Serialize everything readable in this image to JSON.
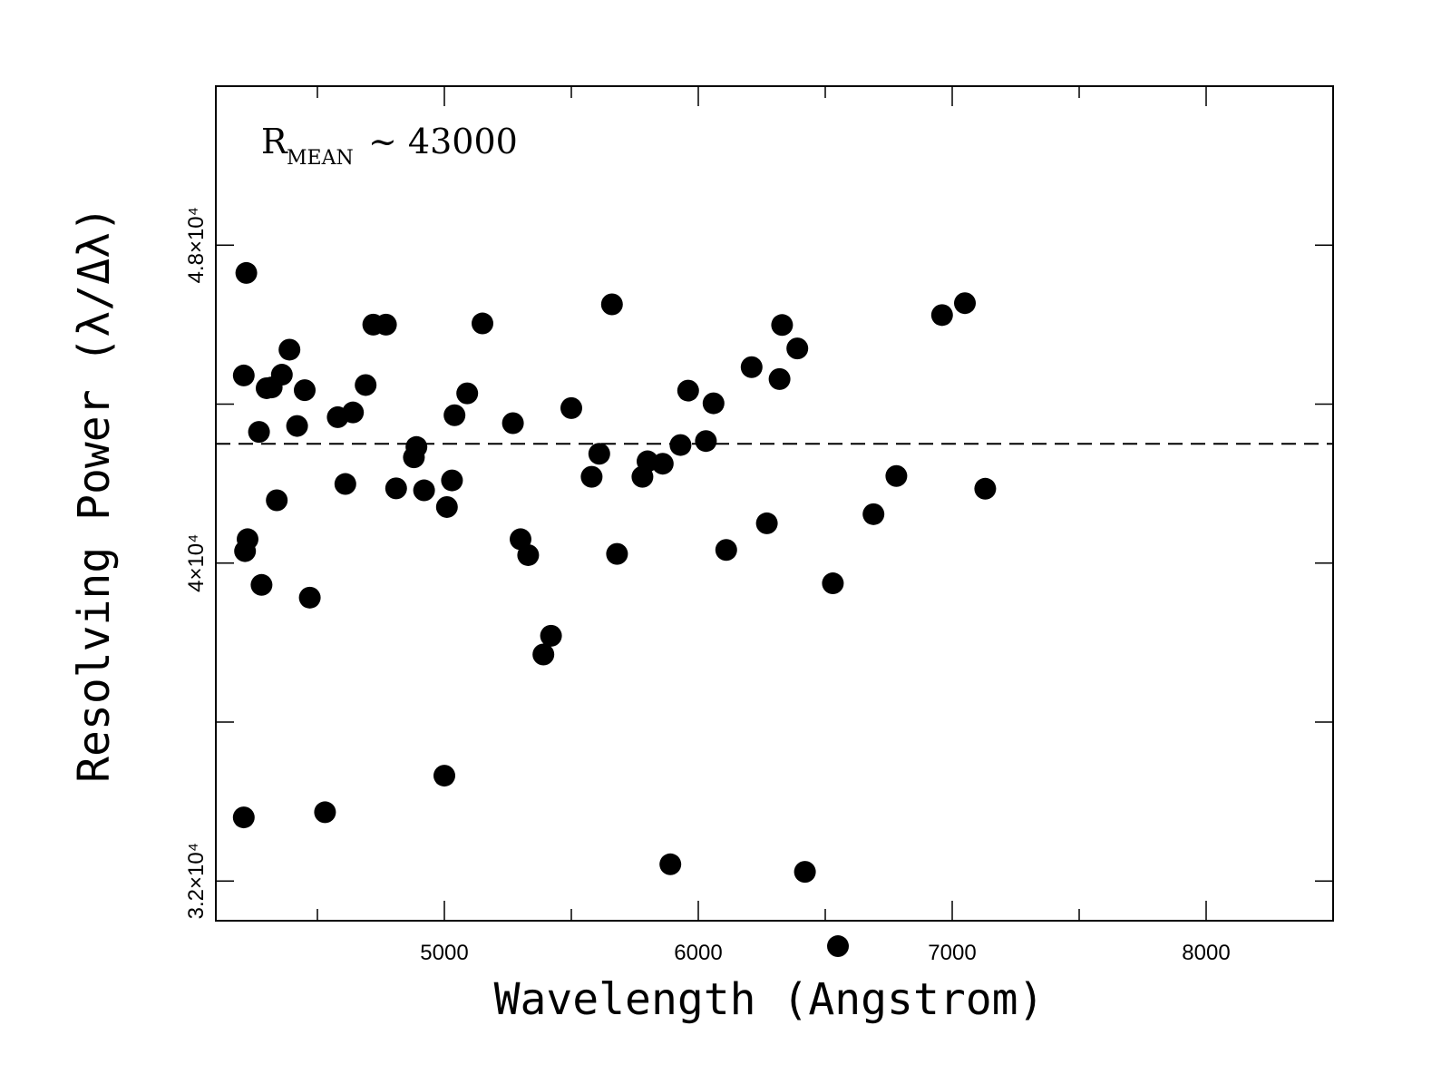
{
  "chart_data": {
    "type": "scatter",
    "title": "",
    "xlabel": "Wavelength (Angstrom)",
    "ylabel": "Resolving Power (λ/Δλ)",
    "xlim": [
      4100,
      8500
    ],
    "ylim": [
      31000,
      52000
    ],
    "xticks": [
      5000,
      6000,
      7000,
      8000
    ],
    "xtick_labels": [
      "5000",
      "6000",
      "7000",
      "8000"
    ],
    "yticks_labeled": [
      32000,
      40000,
      48000
    ],
    "ytick_labels": [
      "3.2×10⁴",
      "4×10⁴",
      "4.8×10⁴"
    ],
    "yticks_minor": [
      36000,
      44000
    ],
    "grid": false,
    "mean_line": {
      "y": 43000,
      "style": "dashed"
    },
    "annotation": {
      "main": "R",
      "subscript": "MEAN",
      "suffix": "~ 43000"
    },
    "points": [
      {
        "x": 4220,
        "y": 47300
      },
      {
        "x": 4210,
        "y": 44720
      },
      {
        "x": 4215,
        "y": 40300
      },
      {
        "x": 4225,
        "y": 40600
      },
      {
        "x": 4210,
        "y": 33600
      },
      {
        "x": 4270,
        "y": 43300
      },
      {
        "x": 4280,
        "y": 39450
      },
      {
        "x": 4300,
        "y": 44400
      },
      {
        "x": 4320,
        "y": 44420
      },
      {
        "x": 4340,
        "y": 41580
      },
      {
        "x": 4360,
        "y": 44740
      },
      {
        "x": 4390,
        "y": 45370
      },
      {
        "x": 4420,
        "y": 43450
      },
      {
        "x": 4450,
        "y": 44350
      },
      {
        "x": 4470,
        "y": 39130
      },
      {
        "x": 4530,
        "y": 33730
      },
      {
        "x": 4580,
        "y": 43670
      },
      {
        "x": 4610,
        "y": 41990
      },
      {
        "x": 4640,
        "y": 43790
      },
      {
        "x": 4690,
        "y": 44480
      },
      {
        "x": 4720,
        "y": 46000
      },
      {
        "x": 4770,
        "y": 46000
      },
      {
        "x": 4810,
        "y": 41880
      },
      {
        "x": 4880,
        "y": 42660
      },
      {
        "x": 4890,
        "y": 42920
      },
      {
        "x": 4920,
        "y": 41830
      },
      {
        "x": 5000,
        "y": 34650
      },
      {
        "x": 5010,
        "y": 41410
      },
      {
        "x": 5030,
        "y": 42080
      },
      {
        "x": 5040,
        "y": 43720
      },
      {
        "x": 5090,
        "y": 44270
      },
      {
        "x": 5150,
        "y": 46030
      },
      {
        "x": 5270,
        "y": 43520
      },
      {
        "x": 5300,
        "y": 40600
      },
      {
        "x": 5330,
        "y": 40200
      },
      {
        "x": 5390,
        "y": 37700
      },
      {
        "x": 5420,
        "y": 38170
      },
      {
        "x": 5500,
        "y": 43900
      },
      {
        "x": 5580,
        "y": 42170
      },
      {
        "x": 5610,
        "y": 42750
      },
      {
        "x": 5660,
        "y": 46510
      },
      {
        "x": 5680,
        "y": 40230
      },
      {
        "x": 5780,
        "y": 42170
      },
      {
        "x": 5800,
        "y": 42560
      },
      {
        "x": 5860,
        "y": 42500
      },
      {
        "x": 5890,
        "y": 32420
      },
      {
        "x": 5930,
        "y": 42970
      },
      {
        "x": 5960,
        "y": 44340
      },
      {
        "x": 6030,
        "y": 43070
      },
      {
        "x": 6060,
        "y": 44020
      },
      {
        "x": 6110,
        "y": 40330
      },
      {
        "x": 6210,
        "y": 44930
      },
      {
        "x": 6270,
        "y": 41000
      },
      {
        "x": 6320,
        "y": 44630
      },
      {
        "x": 6330,
        "y": 45990
      },
      {
        "x": 6390,
        "y": 45400
      },
      {
        "x": 6420,
        "y": 32230
      },
      {
        "x": 6530,
        "y": 39490
      },
      {
        "x": 6550,
        "y": 30360
      },
      {
        "x": 6690,
        "y": 41230
      },
      {
        "x": 6780,
        "y": 42190
      },
      {
        "x": 6960,
        "y": 46240
      },
      {
        "x": 7050,
        "y": 46540
      },
      {
        "x": 7130,
        "y": 41870
      }
    ]
  }
}
